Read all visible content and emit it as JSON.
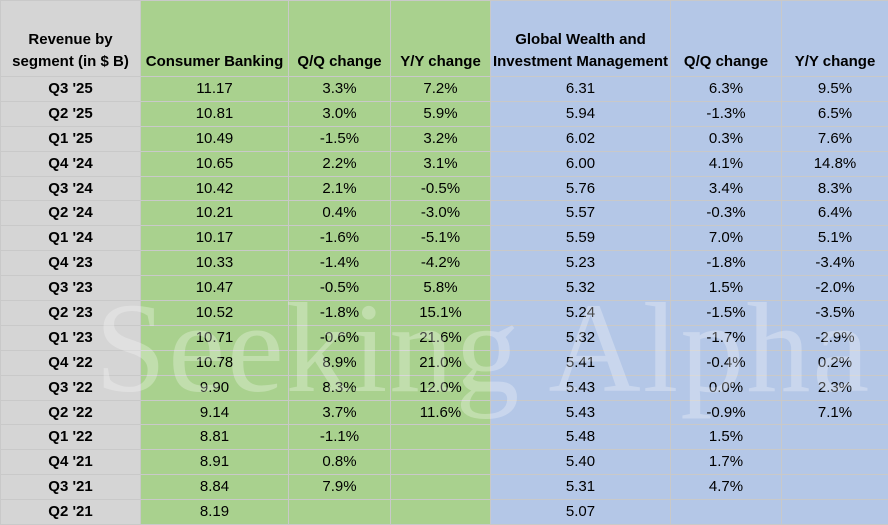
{
  "headers": {
    "segment": "Revenue by segment (in $ B)",
    "consumer": "Consumer Banking",
    "qq1": "Q/Q change",
    "yy1": "Y/Y change",
    "gwim": "Global Wealth and Investment Management",
    "qq2": "Q/Q change",
    "yy2": "Y/Y change"
  },
  "watermark": "Seeking Alpha",
  "colors": {
    "label_bg": "#d5d5d5",
    "consumer_bg": "#a9d18e",
    "gwim_bg": "#b4c7e7"
  },
  "chart_data": {
    "type": "table",
    "columns": [
      "Revenue by segment (in $ B)",
      "Consumer Banking",
      "Q/Q change",
      "Y/Y change",
      "Global Wealth and Investment Management",
      "Q/Q change",
      "Y/Y change"
    ],
    "rows": [
      [
        "Q3 '25",
        "11.17",
        "3.3%",
        "7.2%",
        "6.31",
        "6.3%",
        "9.5%"
      ],
      [
        "Q2 '25",
        "10.81",
        "3.0%",
        "5.9%",
        "5.94",
        "-1.3%",
        "6.5%"
      ],
      [
        "Q1 '25",
        "10.49",
        "-1.5%",
        "3.2%",
        "6.02",
        "0.3%",
        "7.6%"
      ],
      [
        "Q4 '24",
        "10.65",
        "2.2%",
        "3.1%",
        "6.00",
        "4.1%",
        "14.8%"
      ],
      [
        "Q3 '24",
        "10.42",
        "2.1%",
        "-0.5%",
        "5.76",
        "3.4%",
        "8.3%"
      ],
      [
        "Q2 '24",
        "10.21",
        "0.4%",
        "-3.0%",
        "5.57",
        "-0.3%",
        "6.4%"
      ],
      [
        "Q1 '24",
        "10.17",
        "-1.6%",
        "-5.1%",
        "5.59",
        "7.0%",
        "5.1%"
      ],
      [
        "Q4 '23",
        "10.33",
        "-1.4%",
        "-4.2%",
        "5.23",
        "-1.8%",
        "-3.4%"
      ],
      [
        "Q3 '23",
        "10.47",
        "-0.5%",
        "5.8%",
        "5.32",
        "1.5%",
        "-2.0%"
      ],
      [
        "Q2 '23",
        "10.52",
        "-1.8%",
        "15.1%",
        "5.24",
        "-1.5%",
        "-3.5%"
      ],
      [
        "Q1 '23",
        "10.71",
        "-0.6%",
        "21.6%",
        "5.32",
        "-1.7%",
        "-2.9%"
      ],
      [
        "Q4 '22",
        "10.78",
        "8.9%",
        "21.0%",
        "5.41",
        "-0.4%",
        "0.2%"
      ],
      [
        "Q3 '22",
        "9.90",
        "8.3%",
        "12.0%",
        "5.43",
        "0.0%",
        "2.3%"
      ],
      [
        "Q2 '22",
        "9.14",
        "3.7%",
        "11.6%",
        "5.43",
        "-0.9%",
        "7.1%"
      ],
      [
        "Q1 '22",
        "8.81",
        "-1.1%",
        "",
        "5.48",
        "1.5%",
        ""
      ],
      [
        "Q4 '21",
        "8.91",
        "0.8%",
        "",
        "5.40",
        "1.7%",
        ""
      ],
      [
        "Q3 '21",
        "8.84",
        "7.9%",
        "",
        "5.31",
        "4.7%",
        ""
      ],
      [
        "Q2 '21",
        "8.19",
        "",
        "",
        "5.07",
        "",
        ""
      ]
    ]
  }
}
